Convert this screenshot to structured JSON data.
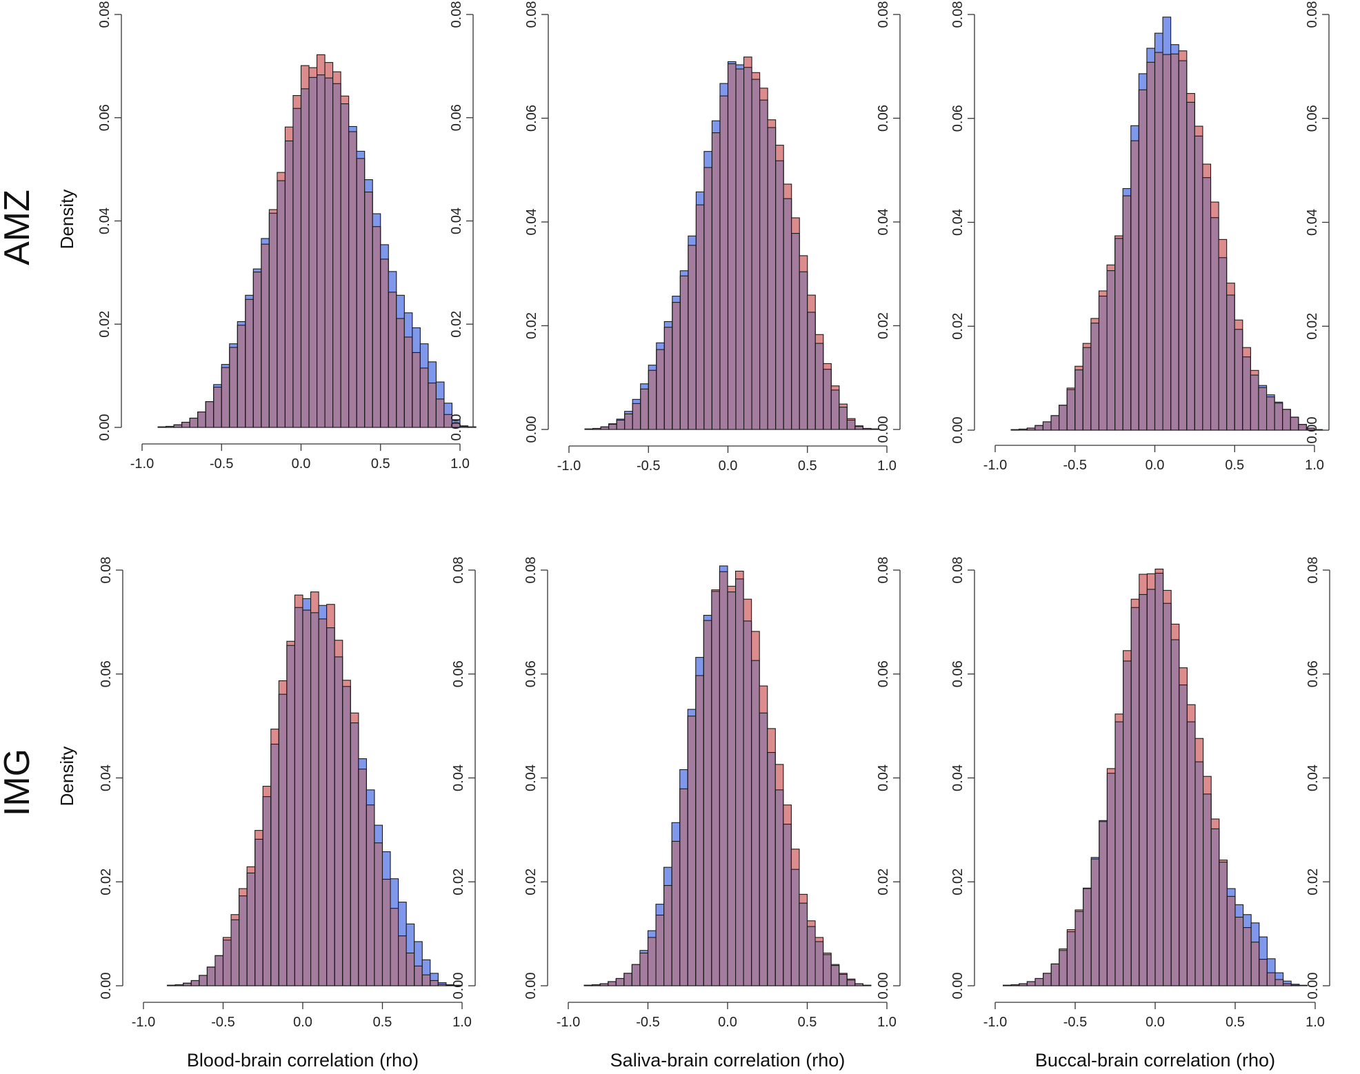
{
  "figure": {
    "row_labels": [
      "AMZ",
      "IMG"
    ],
    "density_label": "Density",
    "x_axis_labels": [
      "Blood-brain correlation (rho)",
      "Saliva-brain correlation (rho)",
      "Buccal-brain correlation (rho)"
    ],
    "colors": {
      "series_a": "#7f98ec",
      "series_b": "#dc8c8c",
      "overlap": "#a47d9e",
      "edge": "#1a1a1a"
    }
  },
  "chart_data": [
    {
      "type": "bar",
      "panel": "AMZ / Blood",
      "xlabel": "Blood-brain correlation (rho)",
      "ylabel": "Density",
      "xlim": [
        -1.0,
        1.0
      ],
      "ylim": [
        0,
        0.08
      ],
      "xticks": [
        "-1.0",
        "-0.5",
        "0.0",
        "0.5",
        "1.0"
      ],
      "yticks": [
        "0.00",
        "0.02",
        "0.04",
        "0.06",
        "0.08"
      ],
      "bin_width": 0.05,
      "bin_start": -0.9,
      "series": [
        {
          "values": [
            0.0001,
            0.0002,
            0.0005,
            0.001,
            0.0018,
            0.003,
            0.005,
            0.0083,
            0.0122,
            0.0162,
            0.0205,
            0.0256,
            0.0307,
            0.0366,
            0.0415,
            0.0478,
            0.0555,
            0.0618,
            0.0656,
            0.0678,
            0.0683,
            0.0677,
            0.0666,
            0.0627,
            0.0583,
            0.0535,
            0.048,
            0.0414,
            0.0354,
            0.0302,
            0.0256,
            0.0222,
            0.0193,
            0.0162,
            0.0127,
            0.0088,
            0.0047,
            0.0015,
            0.0003,
            0.0001
          ]
        },
        {
          "values": [
            0.0001,
            0.0002,
            0.0005,
            0.001,
            0.0018,
            0.003,
            0.005,
            0.0078,
            0.0116,
            0.0155,
            0.0198,
            0.0248,
            0.0301,
            0.0355,
            0.0422,
            0.0494,
            0.0582,
            0.0643,
            0.0701,
            0.0697,
            0.0722,
            0.0707,
            0.0689,
            0.0642,
            0.0573,
            0.0521,
            0.0456,
            0.0389,
            0.0326,
            0.0262,
            0.0211,
            0.0175,
            0.0145,
            0.0115,
            0.0086,
            0.0055,
            0.0025,
            0.0008,
            0.0002,
            0.0001
          ]
        }
      ]
    },
    {
      "type": "bar",
      "panel": "AMZ / Saliva",
      "xlabel": "Saliva-brain correlation (rho)",
      "ylabel": "",
      "xlim": [
        -1.0,
        1.0
      ],
      "ylim": [
        0,
        0.08
      ],
      "xticks": [
        "-1.0",
        "-0.5",
        "0.0",
        "0.5",
        "1.0"
      ],
      "yticks": [
        "0.00",
        "0.02",
        "0.04",
        "0.06",
        "0.08"
      ],
      "bin_width": 0.05,
      "bin_start": -0.9,
      "series": [
        {
          "values": [
            0.0001,
            0.0002,
            0.0005,
            0.0011,
            0.002,
            0.0035,
            0.0058,
            0.0088,
            0.0124,
            0.0167,
            0.0208,
            0.0257,
            0.0306,
            0.0373,
            0.0458,
            0.0536,
            0.0595,
            0.0667,
            0.0709,
            0.0703,
            0.0698,
            0.0675,
            0.0635,
            0.0582,
            0.0518,
            0.0445,
            0.0378,
            0.0304,
            0.0226,
            0.0166,
            0.0116,
            0.0076,
            0.0043,
            0.0018,
            0.0006,
            0.0002,
            0.0001
          ]
        },
        {
          "values": [
            0.0001,
            0.0002,
            0.0005,
            0.001,
            0.0018,
            0.003,
            0.005,
            0.0078,
            0.0114,
            0.0154,
            0.0197,
            0.0245,
            0.0296,
            0.0355,
            0.0433,
            0.0505,
            0.0572,
            0.0643,
            0.0705,
            0.0695,
            0.0718,
            0.0688,
            0.0658,
            0.0597,
            0.0548,
            0.0473,
            0.0408,
            0.0335,
            0.0259,
            0.0183,
            0.0127,
            0.0084,
            0.0049,
            0.0021,
            0.0007,
            0.0002,
            0.0001
          ]
        }
      ]
    },
    {
      "type": "bar",
      "panel": "AMZ / Buccal",
      "xlabel": "Buccal-brain correlation (rho)",
      "ylabel": "",
      "xlim": [
        -1.0,
        1.0
      ],
      "ylim": [
        0,
        0.08
      ],
      "xticks": [
        "-1.0",
        "-0.5",
        "0.0",
        "0.5",
        "1.0"
      ],
      "yticks": [
        "0.00",
        "0.02",
        "0.04",
        "0.06",
        "0.08"
      ],
      "bin_width": 0.05,
      "bin_start": -0.9,
      "series": [
        {
          "values": [
            0.0001,
            0.0002,
            0.0004,
            0.0009,
            0.0016,
            0.0028,
            0.0048,
            0.0078,
            0.0116,
            0.0159,
            0.0206,
            0.0258,
            0.0307,
            0.0369,
            0.0465,
            0.0586,
            0.0686,
            0.0735,
            0.0764,
            0.0795,
            0.0742,
            0.0711,
            0.0631,
            0.0566,
            0.0486,
            0.0409,
            0.0332,
            0.026,
            0.0194,
            0.0141,
            0.0106,
            0.0086,
            0.0068,
            0.0054,
            0.004,
            0.0025,
            0.0011,
            0.0004,
            0.0001
          ]
        },
        {
          "values": [
            0.0001,
            0.0002,
            0.0004,
            0.0009,
            0.0016,
            0.0028,
            0.0048,
            0.0081,
            0.0123,
            0.0167,
            0.0215,
            0.0268,
            0.0318,
            0.0374,
            0.0451,
            0.0557,
            0.0655,
            0.0708,
            0.0727,
            0.0723,
            0.0724,
            0.073,
            0.0648,
            0.0585,
            0.0512,
            0.0439,
            0.0367,
            0.0283,
            0.0212,
            0.0159,
            0.0115,
            0.0082,
            0.0064,
            0.0052,
            0.004,
            0.0025,
            0.0011,
            0.0004,
            0.0001
          ]
        }
      ]
    },
    {
      "type": "bar",
      "panel": "IMG / Blood",
      "xlabel": "Blood-brain correlation (rho)",
      "ylabel": "Density",
      "xlim": [
        -1.0,
        1.0
      ],
      "ylim": [
        0,
        0.08
      ],
      "xticks": [
        "-1.0",
        "-0.5",
        "0.0",
        "0.5",
        "1.0"
      ],
      "yticks": [
        "0.00",
        "0.02",
        "0.04",
        "0.06",
        "0.08"
      ],
      "bin_width": 0.05,
      "bin_start": -0.85,
      "series": [
        {
          "values": [
            0.0001,
            0.0002,
            0.0005,
            0.001,
            0.002,
            0.0036,
            0.0058,
            0.0088,
            0.0127,
            0.0173,
            0.0217,
            0.0282,
            0.0364,
            0.0465,
            0.0561,
            0.0655,
            0.0728,
            0.0745,
            0.0718,
            0.0732,
            0.0689,
            0.0633,
            0.0576,
            0.0506,
            0.0437,
            0.0377,
            0.0309,
            0.0258,
            0.0206,
            0.0161,
            0.0119,
            0.0085,
            0.005,
            0.0024,
            0.0006,
            0.0002,
            0.0001
          ]
        },
        {
          "values": [
            0.0001,
            0.0002,
            0.0005,
            0.001,
            0.002,
            0.0036,
            0.0058,
            0.0093,
            0.0137,
            0.0187,
            0.0229,
            0.0299,
            0.0384,
            0.0494,
            0.0587,
            0.0663,
            0.0752,
            0.0723,
            0.0758,
            0.0706,
            0.0734,
            0.0665,
            0.0588,
            0.0525,
            0.0417,
            0.0348,
            0.0275,
            0.0205,
            0.0149,
            0.0096,
            0.0063,
            0.0038,
            0.0021,
            0.001,
            0.0003,
            0.0001
          ]
        }
      ]
    },
    {
      "type": "bar",
      "panel": "IMG / Saliva",
      "xlabel": "Saliva-brain correlation (rho)",
      "ylabel": "",
      "xlim": [
        -1.0,
        1.0
      ],
      "ylim": [
        0,
        0.08
      ],
      "xticks": [
        "-1.0",
        "-0.5",
        "0.0",
        "0.5",
        "1.0"
      ],
      "yticks": [
        "0.00",
        "0.02",
        "0.04",
        "0.06",
        "0.08"
      ],
      "bin_width": 0.05,
      "bin_start": -0.9,
      "series": [
        {
          "values": [
            0.0001,
            0.0002,
            0.0004,
            0.0008,
            0.0014,
            0.0024,
            0.0041,
            0.0068,
            0.0106,
            0.0157,
            0.0228,
            0.0314,
            0.0416,
            0.0532,
            0.0632,
            0.0713,
            0.0759,
            0.0808,
            0.0758,
            0.0783,
            0.0702,
            0.0626,
            0.0525,
            0.0449,
            0.0377,
            0.0311,
            0.0224,
            0.0159,
            0.0114,
            0.0085,
            0.006,
            0.0039,
            0.0022,
            0.0011,
            0.0004,
            0.0001
          ]
        },
        {
          "values": [
            0.0001,
            0.0002,
            0.0004,
            0.0008,
            0.0014,
            0.0024,
            0.0041,
            0.0063,
            0.0093,
            0.0136,
            0.0193,
            0.0278,
            0.0379,
            0.0519,
            0.0597,
            0.0703,
            0.0762,
            0.0797,
            0.0769,
            0.0798,
            0.0744,
            0.0682,
            0.0577,
            0.0495,
            0.0426,
            0.0348,
            0.0263,
            0.0176,
            0.0125,
            0.0093,
            0.0063,
            0.0041,
            0.0024,
            0.0013,
            0.0004,
            0.0001
          ]
        }
      ]
    },
    {
      "type": "bar",
      "panel": "IMG / Buccal",
      "xlabel": "Buccal-brain correlation (rho)",
      "ylabel": "",
      "xlim": [
        -1.0,
        1.0
      ],
      "ylim": [
        0,
        0.08
      ],
      "xticks": [
        "-1.0",
        "-0.5",
        "0.0",
        "0.5",
        "1.0"
      ],
      "yticks": [
        "0.00",
        "0.02",
        "0.04",
        "0.06",
        "0.08"
      ],
      "bin_width": 0.05,
      "bin_start": -0.95,
      "series": [
        {
          "values": [
            0.0001,
            0.0002,
            0.0004,
            0.0008,
            0.0014,
            0.0024,
            0.0042,
            0.0068,
            0.0104,
            0.0143,
            0.0188,
            0.0247,
            0.0318,
            0.0409,
            0.0508,
            0.0625,
            0.0728,
            0.0753,
            0.0763,
            0.0794,
            0.0736,
            0.0666,
            0.0579,
            0.0508,
            0.0431,
            0.0369,
            0.0302,
            0.0238,
            0.0187,
            0.0156,
            0.0137,
            0.0121,
            0.0094,
            0.0052,
            0.0025,
            0.0009,
            0.0003,
            0.0001
          ]
        },
        {
          "values": [
            0.0001,
            0.0002,
            0.0004,
            0.0008,
            0.0014,
            0.0024,
            0.0042,
            0.0071,
            0.0108,
            0.0146,
            0.0187,
            0.0244,
            0.0316,
            0.0418,
            0.0523,
            0.0645,
            0.0744,
            0.0792,
            0.0793,
            0.0802,
            0.0761,
            0.0696,
            0.0612,
            0.0541,
            0.0476,
            0.0403,
            0.0321,
            0.0242,
            0.0172,
            0.0132,
            0.0112,
            0.0084,
            0.0051,
            0.0025,
            0.0012,
            0.0004,
            0.0001
          ]
        }
      ]
    }
  ]
}
